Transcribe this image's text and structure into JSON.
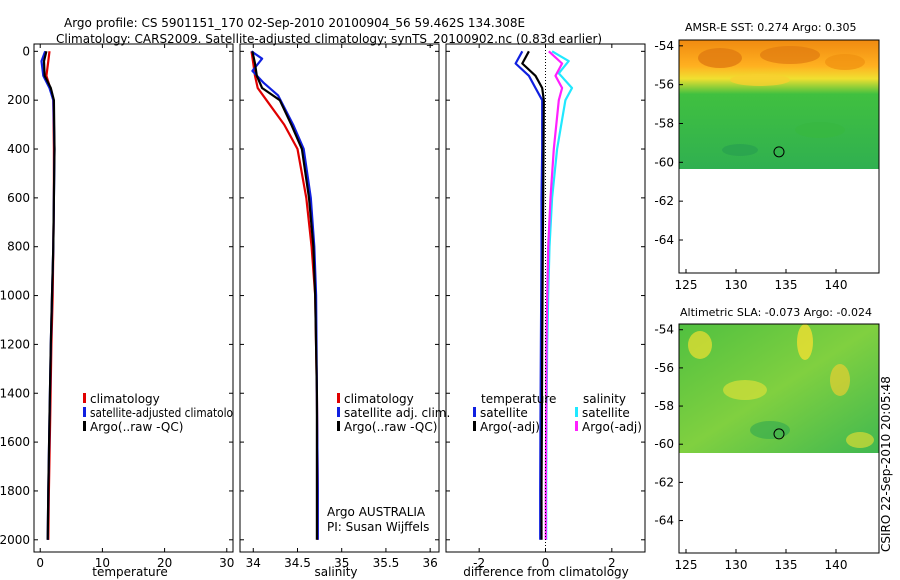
{
  "title": {
    "line1": "Argo profile: CS 5901151_170 02-Sep-2010 20100904_56 59.462S 134.308E",
    "line2": "Climatology: CARS2009. Satellite-adjusted climatology: synTS_20100902.nc (0.83d earlier)"
  },
  "footer_vertical": "CSIRO 22-Sep-2010 20:05:48",
  "colors": {
    "red": "#e00000",
    "blue": "#1020e0",
    "black": "#000000",
    "cyan": "#20e8ff",
    "magenta": "#ff20ff"
  },
  "chart_data": [
    {
      "type": "line",
      "panel": "temperature",
      "xlabel": "temperature",
      "ylabel": "",
      "xlim": [
        -1,
        31
      ],
      "ylim": [
        2050,
        -30
      ],
      "xticks": [
        0,
        10,
        20,
        30
      ],
      "yticks": [
        0,
        200,
        400,
        600,
        800,
        1000,
        1200,
        1400,
        1600,
        1800,
        2000
      ],
      "legend": [
        "climatology",
        "satellite-adjusted climatolo",
        "Argo(..raw -QC)"
      ],
      "series": [
        {
          "name": "climatology",
          "color": "red",
          "x": [
            1.5,
            1.3,
            1.0,
            1.6,
            2.1,
            2.2,
            2.2,
            2.1,
            2.0,
            1.8,
            1.6,
            1.4,
            1.3
          ],
          "y": [
            0,
            40,
            100,
            150,
            200,
            400,
            600,
            800,
            1000,
            1200,
            1500,
            1800,
            2000
          ]
        },
        {
          "name": "satellite-adjusted climatology",
          "color": "blue",
          "x": [
            0.8,
            0.2,
            0.5,
            1.5,
            2.1,
            2.3,
            2.2,
            2.1,
            1.9,
            1.7,
            1.5,
            1.3,
            1.2
          ],
          "y": [
            0,
            40,
            100,
            150,
            200,
            400,
            600,
            800,
            1000,
            1200,
            1500,
            1800,
            2000
          ]
        },
        {
          "name": "Argo(..raw -QC)",
          "color": "black",
          "x": [
            1.0,
            0.6,
            0.7,
            1.7,
            2.2,
            2.3,
            2.2,
            2.1,
            1.9,
            1.7,
            1.5,
            1.3,
            1.2
          ],
          "y": [
            0,
            40,
            100,
            150,
            200,
            400,
            600,
            800,
            1000,
            1200,
            1500,
            1800,
            2000
          ]
        }
      ]
    },
    {
      "type": "line",
      "panel": "salinity",
      "xlabel": "salinity",
      "xlim": [
        33.85,
        36.1
      ],
      "ylim": [
        2050,
        -30
      ],
      "xticks": [
        34,
        34.5,
        35,
        35.5,
        36
      ],
      "legend": [
        "climatology",
        "satellite adj. clim.",
        "Argo(..raw -QC)"
      ],
      "annotation": [
        "Argo AUSTRALIA",
        "PI: Susan Wijffels"
      ],
      "series": [
        {
          "name": "climatology",
          "color": "red",
          "x": [
            33.98,
            34.0,
            34.02,
            34.05,
            34.15,
            34.35,
            34.5,
            34.6,
            34.66,
            34.7,
            34.72,
            34.73,
            34.73
          ],
          "y": [
            0,
            50,
            100,
            150,
            200,
            300,
            400,
            600,
            800,
            1000,
            1400,
            1800,
            2000
          ]
        },
        {
          "name": "satellite adj. clim.",
          "color": "blue",
          "x": [
            33.98,
            34.1,
            33.99,
            34.12,
            34.28,
            34.45,
            34.57,
            34.65,
            34.69,
            34.71,
            34.72,
            34.73,
            34.73
          ],
          "y": [
            0,
            30,
            80,
            130,
            180,
            300,
            400,
            600,
            800,
            1000,
            1400,
            1800,
            2000
          ]
        },
        {
          "name": "Argo(..raw -QC)",
          "color": "black",
          "x": [
            33.99,
            34.02,
            34.04,
            34.1,
            34.3,
            34.43,
            34.55,
            34.63,
            34.68,
            34.7,
            34.72,
            34.72,
            34.72
          ],
          "y": [
            0,
            50,
            100,
            150,
            200,
            300,
            400,
            600,
            800,
            1000,
            1400,
            1800,
            2000
          ]
        }
      ]
    },
    {
      "type": "line",
      "panel": "difference",
      "xlabel": "difference from climatology",
      "xlim": [
        -3,
        3
      ],
      "ylim": [
        2050,
        -30
      ],
      "xticks": [
        -2,
        0,
        2
      ],
      "legend_left_title": "temperature",
      "legend_right_title": "salinity",
      "legend": [
        "satellite",
        "Argo(-adj)",
        "satellite",
        "Argo(-adj)"
      ],
      "series": [
        {
          "name": "temperature satellite",
          "color": "blue",
          "x": [
            -0.7,
            -0.9,
            -0.5,
            -0.3,
            -0.1,
            -0.1,
            -0.12,
            -0.12,
            -0.13,
            -0.14,
            -0.15,
            -0.16,
            -0.16
          ],
          "y": [
            0,
            50,
            100,
            150,
            200,
            400,
            600,
            800,
            1000,
            1200,
            1500,
            1800,
            2000
          ]
        },
        {
          "name": "temperature Argo(-adj)",
          "color": "black",
          "x": [
            -0.5,
            -0.7,
            -0.3,
            -0.1,
            -0.05,
            -0.06,
            -0.07,
            -0.08,
            -0.09,
            -0.1,
            -0.11,
            -0.12,
            -0.12
          ],
          "y": [
            0,
            50,
            100,
            150,
            200,
            400,
            600,
            800,
            1000,
            1200,
            1500,
            1800,
            2000
          ]
        },
        {
          "name": "salinity satellite",
          "color": "cyan",
          "x": [
            0.2,
            0.7,
            0.4,
            0.8,
            0.6,
            0.35,
            0.2,
            0.12,
            0.08,
            0.05,
            0.03,
            0.02,
            0.02
          ],
          "y": [
            0,
            40,
            90,
            150,
            200,
            400,
            600,
            800,
            1000,
            1200,
            1500,
            1800,
            2000
          ]
        },
        {
          "name": "salinity Argo(-adj)",
          "color": "magenta",
          "x": [
            0.1,
            0.5,
            0.3,
            0.5,
            0.4,
            0.25,
            0.15,
            0.08,
            0.05,
            0.03,
            0.02,
            0.01,
            0.01
          ],
          "y": [
            0,
            50,
            100,
            150,
            200,
            400,
            600,
            800,
            1000,
            1200,
            1500,
            1800,
            2000
          ]
        }
      ]
    },
    {
      "type": "heatmap",
      "panel": "map-sst",
      "title": "AMSR-E SST: 0.274 Argo: 0.305",
      "xlim": [
        124.3,
        144.3
      ],
      "ylim": [
        -65.7,
        -53.7
      ],
      "xticks": [
        125,
        130,
        135,
        140
      ],
      "yticks": [
        -54,
        -56,
        -58,
        -60,
        -62,
        -64
      ],
      "marker": {
        "lon": 134.3,
        "lat": -59.46
      }
    },
    {
      "type": "heatmap",
      "panel": "map-sla",
      "title": "Altimetric SLA: -0.073 Argo: -0.024",
      "xlim": [
        124.3,
        144.3
      ],
      "ylim": [
        -65.7,
        -53.7
      ],
      "xticks": [
        125,
        130,
        135,
        140
      ],
      "yticks": [
        -54,
        -56,
        -58,
        -60,
        -62,
        -64
      ],
      "marker": {
        "lon": 134.3,
        "lat": -59.46
      }
    }
  ]
}
